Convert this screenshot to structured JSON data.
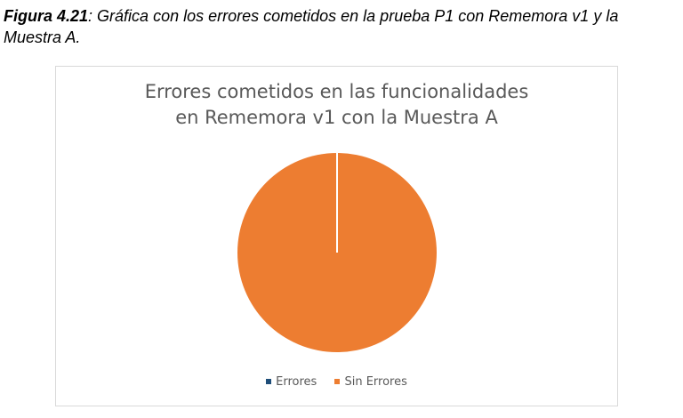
{
  "caption": {
    "label": "Figura 4.21",
    "text": ": Gráfica con los errores cometidos en la prueba P1 con Rememora v1 y la Muestra A."
  },
  "chart_data": {
    "type": "pie",
    "title_lines": [
      "Errores cometidos en las funcionalidades",
      "en Rememora v1 con la Muestra A"
    ],
    "categories": [
      "Errores",
      "Sin Errores"
    ],
    "values": [
      0,
      1
    ],
    "colors": [
      "#1f4e79",
      "#ed7d31"
    ],
    "legend_position": "bottom"
  }
}
